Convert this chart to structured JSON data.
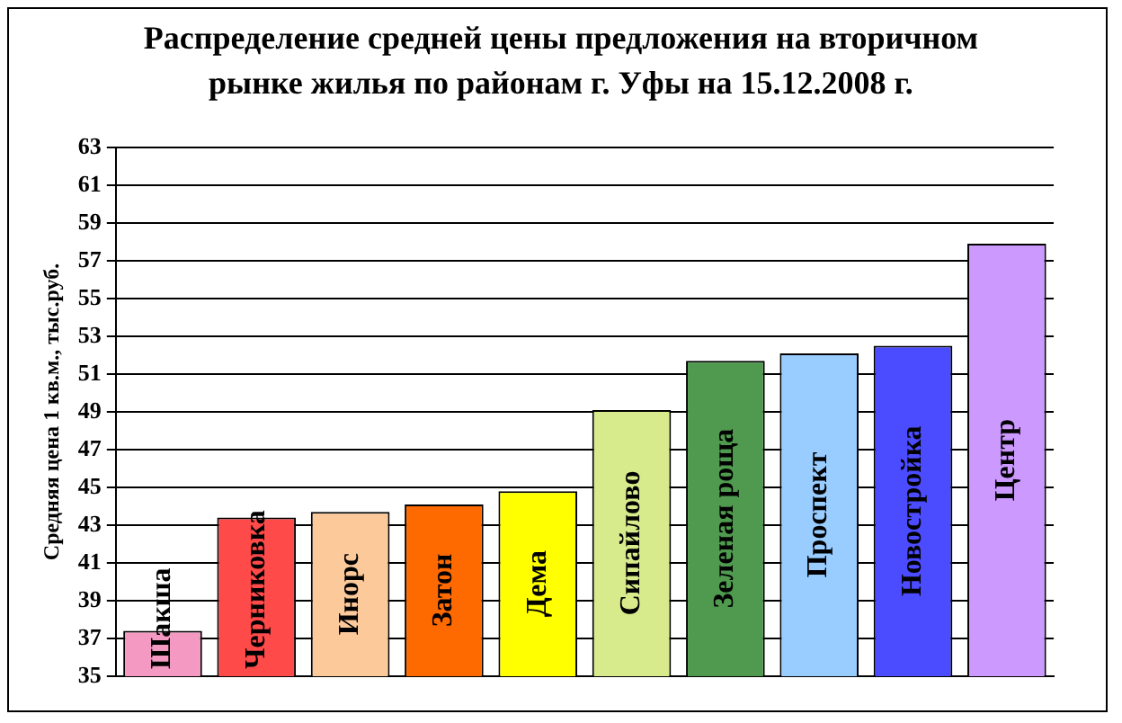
{
  "chart_data": {
    "type": "bar",
    "title": "Распределение средней цены предложения на вторичном рынке жилья по районам г. Уфы на 15.12.2008 г.",
    "ylabel": "Средняя цена 1 кв.м., тыс.руб.",
    "categories": [
      "Шакша",
      "Черниковка",
      "Инорс",
      "Затон",
      "Дема",
      "Сипайлово",
      "Зеленая роща",
      "Проспект",
      "Новостройка",
      "Центр"
    ],
    "values": [
      37.4,
      43.4,
      43.7,
      44.1,
      44.8,
      49.1,
      51.7,
      52.1,
      52.5,
      57.9
    ],
    "colors": [
      "#f49ac2",
      "#ff4a4a",
      "#fcc99b",
      "#ff6a00",
      "#ffff00",
      "#d7ea8c",
      "#4f9a4f",
      "#99ccff",
      "#4b4bff",
      "#cc99ff"
    ],
    "ylim": [
      35,
      63
    ],
    "yticks": [
      35,
      37,
      39,
      41,
      43,
      45,
      47,
      49,
      51,
      53,
      55,
      57,
      59,
      61,
      63
    ],
    "grid": "y"
  }
}
